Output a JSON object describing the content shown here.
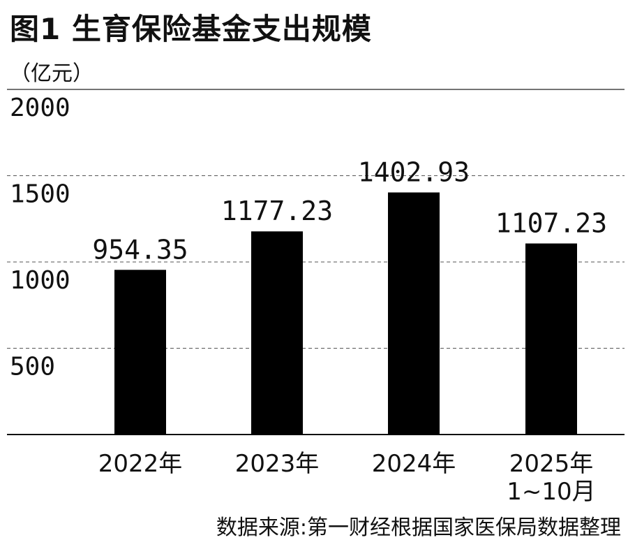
{
  "title": "图1 生育保险基金支出规模",
  "unit": "（亿元）",
  "source": "数据来源:第一财经根据国家医保局数据整理",
  "chart_data": {
    "type": "bar",
    "categories": [
      "2022年",
      "2023年",
      "2024年",
      "2025年\n1~10月"
    ],
    "values": [
      954.35,
      1177.23,
      1402.93,
      1107.23
    ],
    "value_labels": [
      "954.35",
      "1177.23",
      "1402.93",
      "1107.23"
    ],
    "ylim": [
      0,
      2000
    ],
    "yticks": [
      "2000",
      "1500",
      "1000",
      "500"
    ],
    "ytick_values": [
      2000,
      1500,
      1000,
      500
    ],
    "grid": "dashed-horizontal",
    "bar_color": "#000000"
  }
}
